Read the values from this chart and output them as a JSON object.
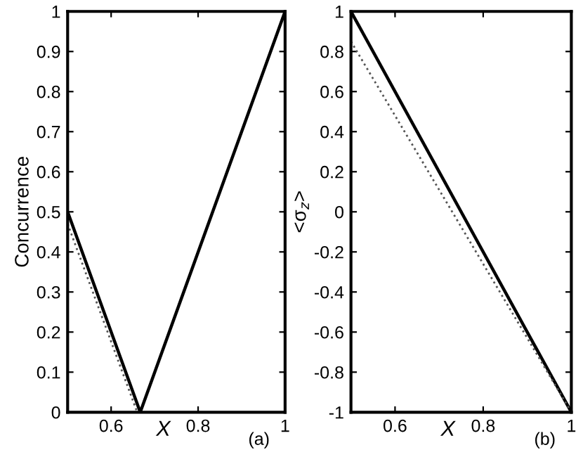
{
  "chart_data": [
    {
      "type": "line",
      "xlabel": "X",
      "ylabel": "Concurrence",
      "annotations": [
        "(a)"
      ],
      "xlim": [
        0.5,
        1
      ],
      "xticks": [
        0.6,
        0.8,
        1
      ],
      "ylim": [
        0,
        1
      ],
      "yticks": [
        0,
        0.1,
        0.2,
        0.3,
        0.4,
        0.5,
        0.6,
        0.7,
        0.8,
        0.9,
        1
      ],
      "grid": false,
      "legend": false,
      "series": [
        {
          "x": [
            0.5,
            0.667,
            1
          ],
          "values": [
            0.5,
            0.0,
            1.0
          ],
          "color": "#000000",
          "line_style": "solid"
        },
        {
          "x": [
            0.5,
            0.66
          ],
          "values": [
            0.47,
            0.0
          ],
          "color": "#555555",
          "line_style": "dotted"
        }
      ]
    },
    {
      "type": "line",
      "xlabel": "X",
      "ylabel": "<σ$_{z}$>",
      "annotations": [
        "(b)"
      ],
      "xlim": [
        0.5,
        1
      ],
      "xticks": [
        0.6,
        0.8,
        1
      ],
      "ylim": [
        -1,
        1
      ],
      "yticks": [
        -1,
        -0.8,
        -0.6,
        -0.4,
        -0.2,
        0,
        0.2,
        0.4,
        0.6,
        0.8,
        1
      ],
      "grid": false,
      "legend": false,
      "series": [
        {
          "x": [
            0.5,
            1
          ],
          "values": [
            1.0,
            -1.0
          ],
          "color": "#000000",
          "line_style": "solid"
        },
        {
          "x": [
            0.5,
            1
          ],
          "values": [
            0.85,
            -1.0
          ],
          "color": "#555555",
          "line_style": "dotted"
        }
      ]
    }
  ]
}
